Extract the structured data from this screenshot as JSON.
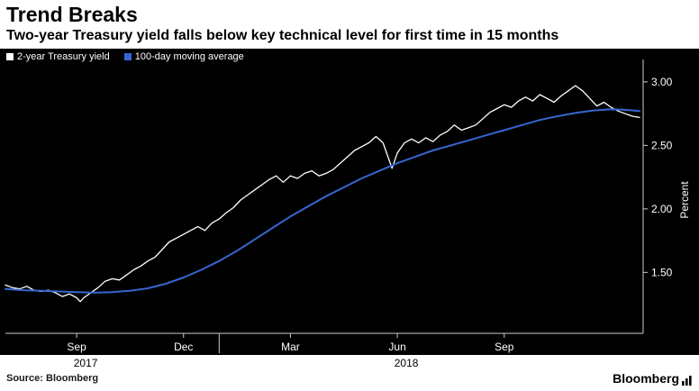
{
  "header": {
    "title": "Trend Breaks",
    "subtitle": "Two-year Treasury yield falls below key technical level for first time in 15 months"
  },
  "legend": [
    {
      "label": "2-year Treasury yield",
      "color": "#ffffff"
    },
    {
      "label": "100-day moving average",
      "color": "#3766d0"
    }
  ],
  "footer": {
    "source": "Source: Bloomberg",
    "brand": "Bloomberg"
  },
  "colors": {
    "chart_background": "#000000",
    "axis_line": "#cccccc",
    "tick_text": "#ffffff",
    "year_text": "#000000"
  },
  "chart_data": {
    "type": "line",
    "title": "Trend Breaks",
    "subtitle": "Two-year Treasury yield falls below key technical level for first time in 15 months",
    "ylabel": "Percent",
    "x_unit": "months since 2017-07-01",
    "xlim": [
      0,
      17.9
    ],
    "ylim": [
      1.02,
      3.12
    ],
    "yticks": [
      1.5,
      2.0,
      2.5,
      3.0
    ],
    "ytick_labels": [
      "1.50",
      "2.00",
      "2.50",
      "3.00"
    ],
    "xticks": [
      {
        "x": 2,
        "label": "Sep",
        "year": "2017"
      },
      {
        "x": 5,
        "label": "Dec"
      },
      {
        "x": 8,
        "label": "Mar"
      },
      {
        "x": 11,
        "label": "Jun",
        "year": "2018"
      },
      {
        "x": 14,
        "label": "Sep"
      }
    ],
    "year_boundaries": [
      6
    ],
    "grid": false,
    "legend_position": "top-left",
    "series": [
      {
        "name": "2-year Treasury yield",
        "color": "#ffffff",
        "width": 1.3,
        "points": [
          [
            0.0,
            1.4
          ],
          [
            0.2,
            1.38
          ],
          [
            0.4,
            1.37
          ],
          [
            0.6,
            1.39
          ],
          [
            0.8,
            1.36
          ],
          [
            1.0,
            1.35
          ],
          [
            1.2,
            1.36
          ],
          [
            1.4,
            1.34
          ],
          [
            1.6,
            1.31
          ],
          [
            1.8,
            1.33
          ],
          [
            2.0,
            1.3
          ],
          [
            2.1,
            1.27
          ],
          [
            2.2,
            1.3
          ],
          [
            2.4,
            1.34
          ],
          [
            2.6,
            1.38
          ],
          [
            2.8,
            1.43
          ],
          [
            3.0,
            1.45
          ],
          [
            3.2,
            1.44
          ],
          [
            3.4,
            1.48
          ],
          [
            3.6,
            1.52
          ],
          [
            3.8,
            1.55
          ],
          [
            4.0,
            1.59
          ],
          [
            4.2,
            1.62
          ],
          [
            4.4,
            1.68
          ],
          [
            4.6,
            1.74
          ],
          [
            4.8,
            1.77
          ],
          [
            5.0,
            1.8
          ],
          [
            5.2,
            1.83
          ],
          [
            5.4,
            1.86
          ],
          [
            5.6,
            1.83
          ],
          [
            5.8,
            1.89
          ],
          [
            6.0,
            1.92
          ],
          [
            6.2,
            1.97
          ],
          [
            6.4,
            2.01
          ],
          [
            6.6,
            2.07
          ],
          [
            6.8,
            2.11
          ],
          [
            7.0,
            2.15
          ],
          [
            7.2,
            2.19
          ],
          [
            7.4,
            2.23
          ],
          [
            7.6,
            2.26
          ],
          [
            7.8,
            2.21
          ],
          [
            8.0,
            2.26
          ],
          [
            8.2,
            2.24
          ],
          [
            8.4,
            2.28
          ],
          [
            8.6,
            2.3
          ],
          [
            8.8,
            2.26
          ],
          [
            9.0,
            2.28
          ],
          [
            9.2,
            2.31
          ],
          [
            9.4,
            2.36
          ],
          [
            9.6,
            2.41
          ],
          [
            9.8,
            2.46
          ],
          [
            10.0,
            2.49
          ],
          [
            10.2,
            2.52
          ],
          [
            10.4,
            2.57
          ],
          [
            10.6,
            2.52
          ],
          [
            10.75,
            2.4
          ],
          [
            10.85,
            2.32
          ],
          [
            11.0,
            2.44
          ],
          [
            11.2,
            2.52
          ],
          [
            11.4,
            2.55
          ],
          [
            11.6,
            2.52
          ],
          [
            11.8,
            2.56
          ],
          [
            12.0,
            2.53
          ],
          [
            12.2,
            2.58
          ],
          [
            12.4,
            2.61
          ],
          [
            12.6,
            2.66
          ],
          [
            12.8,
            2.62
          ],
          [
            13.0,
            2.64
          ],
          [
            13.2,
            2.66
          ],
          [
            13.4,
            2.71
          ],
          [
            13.6,
            2.76
          ],
          [
            13.8,
            2.79
          ],
          [
            14.0,
            2.82
          ],
          [
            14.2,
            2.8
          ],
          [
            14.4,
            2.85
          ],
          [
            14.6,
            2.88
          ],
          [
            14.8,
            2.85
          ],
          [
            15.0,
            2.9
          ],
          [
            15.2,
            2.87
          ],
          [
            15.4,
            2.84
          ],
          [
            15.6,
            2.89
          ],
          [
            15.8,
            2.93
          ],
          [
            16.0,
            2.97
          ],
          [
            16.2,
            2.93
          ],
          [
            16.4,
            2.87
          ],
          [
            16.6,
            2.81
          ],
          [
            16.8,
            2.84
          ],
          [
            17.0,
            2.8
          ],
          [
            17.2,
            2.77
          ],
          [
            17.4,
            2.75
          ],
          [
            17.6,
            2.73
          ],
          [
            17.8,
            2.72
          ]
        ]
      },
      {
        "name": "100-day moving average",
        "color": "#3766d0",
        "width": 2,
        "points": [
          [
            0.0,
            1.37
          ],
          [
            0.5,
            1.36
          ],
          [
            1.0,
            1.355
          ],
          [
            1.5,
            1.35
          ],
          [
            2.0,
            1.345
          ],
          [
            2.5,
            1.34
          ],
          [
            3.0,
            1.345
          ],
          [
            3.5,
            1.355
          ],
          [
            4.0,
            1.375
          ],
          [
            4.5,
            1.41
          ],
          [
            5.0,
            1.46
          ],
          [
            5.5,
            1.52
          ],
          [
            6.0,
            1.59
          ],
          [
            6.5,
            1.67
          ],
          [
            7.0,
            1.76
          ],
          [
            7.5,
            1.85
          ],
          [
            8.0,
            1.94
          ],
          [
            8.5,
            2.02
          ],
          [
            9.0,
            2.1
          ],
          [
            9.5,
            2.17
          ],
          [
            10.0,
            2.24
          ],
          [
            10.5,
            2.3
          ],
          [
            11.0,
            2.36
          ],
          [
            11.5,
            2.41
          ],
          [
            12.0,
            2.46
          ],
          [
            12.5,
            2.5
          ],
          [
            13.0,
            2.54
          ],
          [
            13.5,
            2.58
          ],
          [
            14.0,
            2.62
          ],
          [
            14.5,
            2.66
          ],
          [
            15.0,
            2.7
          ],
          [
            15.5,
            2.73
          ],
          [
            16.0,
            2.755
          ],
          [
            16.5,
            2.775
          ],
          [
            17.0,
            2.785
          ],
          [
            17.4,
            2.78
          ],
          [
            17.8,
            2.77
          ]
        ]
      }
    ]
  }
}
